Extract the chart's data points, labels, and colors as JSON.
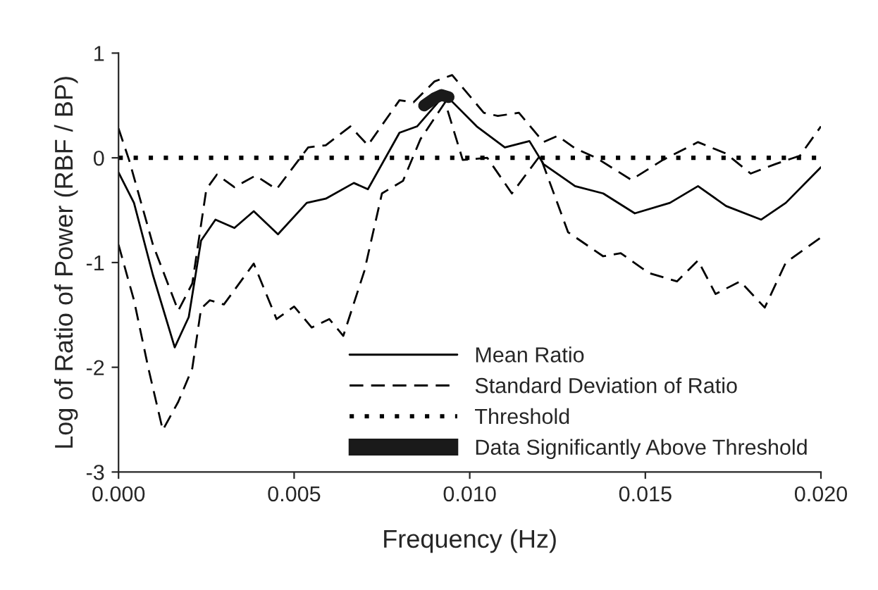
{
  "chart_data": {
    "type": "line",
    "xlabel": "Frequency (Hz)",
    "ylabel": "Log of Ratio of Power (RBF / BP)",
    "xlim": [
      0,
      0.02
    ],
    "ylim": [
      -3,
      1
    ],
    "xticks": [
      {
        "value": 0,
        "label": "0.000"
      },
      {
        "value": 0.005,
        "label": "0.005"
      },
      {
        "value": 0.01,
        "label": "0.010"
      },
      {
        "value": 0.015,
        "label": "0.015"
      },
      {
        "value": 0.02,
        "label": "0.020"
      }
    ],
    "yticks": [
      {
        "value": -3,
        "label": "-3"
      },
      {
        "value": -2,
        "label": "-2"
      },
      {
        "value": -1,
        "label": "-1"
      },
      {
        "value": 0,
        "label": "0"
      },
      {
        "value": 1,
        "label": "1"
      }
    ],
    "grid": false,
    "legend": "bottom right",
    "marker": "none",
    "ref_lines": [
      {
        "axis": "y",
        "value": 0,
        "label": "Threshold",
        "color": "#000000",
        "line_style": "dotted"
      }
    ],
    "series": [
      {
        "name": "Mean Ratio",
        "color": "#000000",
        "line_style": "solid",
        "x": [
          0,
          0.00044,
          0.00098,
          0.0016,
          0.002,
          0.00235,
          0.00276,
          0.0033,
          0.00385,
          0.00454,
          0.00536,
          0.0059,
          0.0067,
          0.0071,
          0.008,
          0.0085,
          0.0092,
          0.0094,
          0.0102,
          0.011,
          0.0117,
          0.0121,
          0.013,
          0.0138,
          0.0147,
          0.0157,
          0.0165,
          0.0173,
          0.0183,
          0.019,
          0.02
        ],
        "values": [
          -0.14,
          -0.43,
          -1.12,
          -1.81,
          -1.52,
          -0.79,
          -0.59,
          -0.67,
          -0.51,
          -0.73,
          -0.43,
          -0.39,
          -0.24,
          -0.3,
          0.24,
          0.3,
          0.57,
          0.57,
          0.3,
          0.1,
          0.16,
          -0.06,
          -0.27,
          -0.34,
          -0.53,
          -0.43,
          -0.27,
          -0.46,
          -0.59,
          -0.43,
          -0.09
        ]
      },
      {
        "name": "Standard Deviation of Ratio",
        "color": "#000000",
        "line_style": "dashed",
        "x": [
          0,
          0.0003,
          0.00098,
          0.0017,
          0.0021,
          0.0025,
          0.0028,
          0.0033,
          0.0039,
          0.0045,
          0.0054,
          0.0059,
          0.0066,
          0.0071,
          0.008,
          0.0084,
          0.009,
          0.0095,
          0.0104,
          0.0108,
          0.0114,
          0.0121,
          0.0125,
          0.013,
          0.0136,
          0.0146,
          0.0155,
          0.0165,
          0.0173,
          0.018,
          0.0187,
          0.0194,
          0.02
        ],
        "values": [
          0.28,
          -0.02,
          -0.83,
          -1.46,
          -1.2,
          -0.3,
          -0.16,
          -0.28,
          -0.17,
          -0.3,
          0.1,
          0.12,
          0.3,
          0.12,
          0.55,
          0.53,
          0.73,
          0.79,
          0.43,
          0.4,
          0.43,
          0.15,
          0.21,
          0.09,
          0,
          -0.21,
          -0.02,
          0.15,
          0.04,
          -0.15,
          -0.06,
          0.02,
          0.3
        ]
      },
      {
        "color": "#000000",
        "line_style": "dashed",
        "x": [
          0,
          0.00044,
          0.00085,
          0.00126,
          0.0017,
          0.0021,
          0.00235,
          0.0026,
          0.003,
          0.00385,
          0.0045,
          0.005,
          0.0055,
          0.006,
          0.0064,
          0.007,
          0.0075,
          0.0081,
          0.0086,
          0.0093,
          0.0098,
          0.0105,
          0.0112,
          0.012,
          0.0128,
          0.0138,
          0.0143,
          0.0151,
          0.0159,
          0.0165,
          0.017,
          0.0177,
          0.0184,
          0.019,
          0.02
        ],
        "values": [
          -0.83,
          -1.36,
          -2.01,
          -2.6,
          -2.33,
          -2.01,
          -1.44,
          -1.36,
          -1.4,
          -1.01,
          -1.54,
          -1.42,
          -1.62,
          -1.54,
          -1.7,
          -1.08,
          -0.34,
          -0.22,
          0.18,
          0.53,
          -0.02,
          0,
          -0.34,
          0.02,
          -0.71,
          -0.94,
          -0.91,
          -1.1,
          -1.18,
          -0.98,
          -1.3,
          -1.18,
          -1.43,
          -1.0,
          -0.76
        ]
      },
      {
        "name": "Data Significantly Above Threshold",
        "color": "#1a1a1a",
        "line_style": "solid",
        "x": [
          0.0087,
          0.009,
          0.0092,
          0.0094
        ],
        "values": [
          0.5,
          0.57,
          0.6,
          0.58
        ]
      }
    ]
  }
}
